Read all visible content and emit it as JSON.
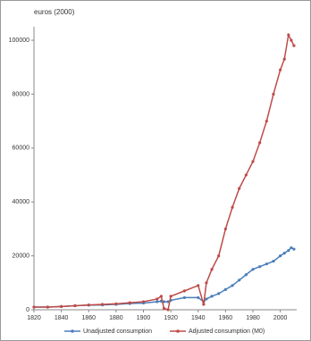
{
  "chart_data": {
    "type": "line",
    "title": "euros (2000)",
    "x": [
      1820,
      1830,
      1840,
      1850,
      1860,
      1870,
      1880,
      1890,
      1900,
      1910,
      1913,
      1915,
      1918,
      1920,
      1930,
      1940,
      1944,
      1946,
      1950,
      1955,
      1960,
      1965,
      1970,
      1975,
      1980,
      1985,
      1990,
      1995,
      2000,
      2003,
      2006,
      2008,
      2010
    ],
    "series": [
      {
        "name": "Unadjusted consumption",
        "color": "#4a7ebb",
        "values": [
          1000,
          1000,
          1200,
          1500,
          1700,
          1800,
          2000,
          2300,
          2500,
          3000,
          3200,
          3000,
          3000,
          3500,
          4500,
          4500,
          3000,
          4000,
          5000,
          6000,
          7500,
          9000,
          11000,
          13000,
          15000,
          16000,
          17000,
          18000,
          20000,
          21000,
          22000,
          23000,
          22500
        ]
      },
      {
        "name": "Adjusted consumption (M0)",
        "color": "#be4b48",
        "values": [
          1000,
          1000,
          1200,
          1500,
          1800,
          2000,
          2200,
          2600,
          3000,
          4000,
          5000,
          500,
          0,
          5000,
          7000,
          9000,
          2000,
          10000,
          15000,
          20000,
          30000,
          38000,
          45000,
          50000,
          55000,
          62000,
          70000,
          80000,
          89000,
          93000,
          102000,
          100000,
          98000
        ]
      }
    ],
    "xlim": [
      1820,
      2012
    ],
    "ylim": [
      0,
      105000
    ],
    "xticks": [
      1820,
      1840,
      1860,
      1880,
      1900,
      1920,
      1940,
      1960,
      1980,
      2000
    ],
    "yticks": [
      0,
      20000,
      40000,
      60000,
      80000,
      100000
    ]
  }
}
